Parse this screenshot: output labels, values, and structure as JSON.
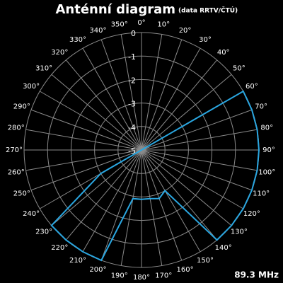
{
  "chart_data": {
    "type": "polar",
    "title": "Anténní diagram",
    "subtitle": "(data RRTV/ČTÚ)",
    "annotation": "89.3 MHz",
    "x": [
      0,
      10,
      20,
      30,
      40,
      50,
      60,
      70,
      80,
      90,
      100,
      110,
      120,
      130,
      140,
      150,
      160,
      170,
      180,
      190,
      200,
      210,
      220,
      230,
      240,
      250,
      260,
      270,
      280,
      290,
      300,
      310,
      320,
      330,
      340,
      350
    ],
    "series": [
      {
        "name": "89.3 MHz",
        "color": "#2aa6e0",
        "values": [
          -5,
          -5,
          -5,
          -5,
          -5,
          -5,
          0,
          0,
          0,
          0,
          0,
          0,
          0,
          0,
          0,
          -3,
          -2.8,
          -2.9,
          -2.9,
          -2.9,
          0,
          0,
          0,
          0,
          -3,
          -5,
          -5,
          -5,
          -5,
          -5,
          -5,
          -5,
          -5,
          -5,
          -5,
          -5
        ]
      }
    ],
    "rlim": [
      -5,
      0
    ],
    "rticks": [
      0,
      -1,
      -2,
      -3,
      -4,
      -5
    ],
    "xticks": [
      {
        "value": 0,
        "label": "0°"
      },
      {
        "value": 10,
        "label": "10°"
      },
      {
        "value": 20,
        "label": "20°"
      },
      {
        "value": 30,
        "label": "30°"
      },
      {
        "value": 40,
        "label": "40°"
      },
      {
        "value": 50,
        "label": "50°"
      },
      {
        "value": 60,
        "label": "60°"
      },
      {
        "value": 70,
        "label": "70°"
      },
      {
        "value": 80,
        "label": "80°"
      },
      {
        "value": 90,
        "label": "90°"
      },
      {
        "value": 100,
        "label": "100°"
      },
      {
        "value": 110,
        "label": "110°"
      },
      {
        "value": 120,
        "label": "120°"
      },
      {
        "value": 130,
        "label": "130°"
      },
      {
        "value": 140,
        "label": "140°"
      },
      {
        "value": 150,
        "label": "150°"
      },
      {
        "value": 160,
        "label": "160°"
      },
      {
        "value": 170,
        "label": "170°"
      },
      {
        "value": 180,
        "label": "180°"
      },
      {
        "value": 190,
        "label": "190°"
      },
      {
        "value": 200,
        "label": "200°"
      },
      {
        "value": 210,
        "label": "210°"
      },
      {
        "value": 220,
        "label": "220°"
      },
      {
        "value": 230,
        "label": "230°"
      },
      {
        "value": 240,
        "label": "240°"
      },
      {
        "value": 250,
        "label": "250°"
      },
      {
        "value": 260,
        "label": "260°"
      },
      {
        "value": 270,
        "label": "270°"
      },
      {
        "value": 280,
        "label": "280°"
      },
      {
        "value": 290,
        "label": "290°"
      },
      {
        "value": 300,
        "label": "300°"
      },
      {
        "value": 310,
        "label": "310°"
      },
      {
        "value": 320,
        "label": "320°"
      },
      {
        "value": 330,
        "label": "330°"
      },
      {
        "value": 340,
        "label": "340°"
      },
      {
        "value": 350,
        "label": "350°"
      }
    ],
    "grid": true
  }
}
